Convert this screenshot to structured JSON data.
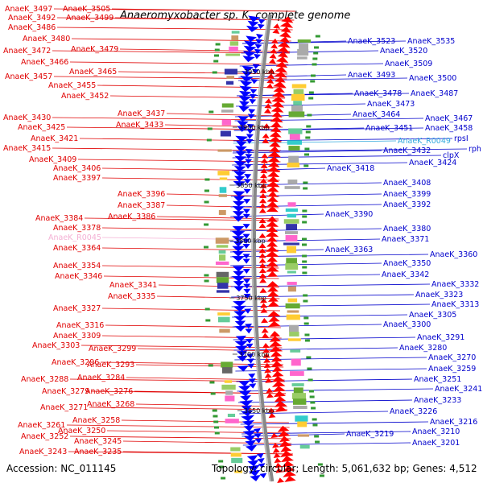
{
  "title": "Anaeromyxobacter sp. K, complete genome",
  "footer": {
    "accession": "Accession: NC_011145",
    "summary": "Topology: circular; Length: 5,061,632 bp; Genes: 4,512"
  },
  "colors": {
    "left_labels": "#e00000",
    "right_labels": "#0000cc",
    "rna_left": "#f4b0d4",
    "rna_right": "#33aadd",
    "forward_strand": "#ff0000",
    "reverse_strand": "#0000ff",
    "backbone": "#888888"
  },
  "scale_marks": [
    "3950 kbp",
    "3900 kbp",
    "3850 kbp",
    "3800 kbp",
    "3750 kbp",
    "3700 kbp",
    "3650 kbp"
  ],
  "left_labels": [
    "AnaeK_3497",
    "AnaeK_3505",
    "AnaeK_3492",
    "AnaeK_3499",
    "AnaeK_3486",
    "AnaeK_3480",
    "AnaeK_3472",
    "AnaeK_3479",
    "AnaeK_3466",
    "AnaeK_3465",
    "AnaeK_3457",
    "AnaeK_3455",
    "AnaeK_3452",
    "AnaeK_3437",
    "AnaeK_3430",
    "AnaeK_3433",
    "AnaeK_3425",
    "AnaeK_3421",
    "AnaeK_3415",
    "AnaeK_3409",
    "AnaeK_3406",
    "AnaeK_3397",
    "AnaeK_3396",
    "AnaeK_3387",
    "AnaeK_3384",
    "AnaeK_3386",
    "AnaeK_3378",
    "AnaeK_R0045",
    "AnaeK_3364",
    "AnaeK_3354",
    "AnaeK_3346",
    "AnaeK_3341",
    "AnaeK_3335",
    "AnaeK_3327",
    "AnaeK_3316",
    "AnaeK_3309",
    "AnaeK_3303",
    "AnaeK_3299",
    "AnaeK_3296",
    "AnaeK_3293",
    "AnaeK_3288",
    "AnaeK_3284",
    "AnaeK_3279",
    "AnaeK_3276",
    "AnaeK_3271",
    "AnaeK_3268",
    "AnaeK_3258",
    "AnaeK_3261",
    "AnaeK_3250",
    "AnaeK_3252",
    "AnaeK_3245",
    "AnaeK_3243",
    "AnaeK_3235"
  ],
  "right_labels": [
    "AnaeK_3523",
    "AnaeK_3535",
    "AnaeK_3520",
    "AnaeK_3509",
    "AnaeK_3493",
    "AnaeK_3500",
    "AnaeK_3478",
    "AnaeK_3487",
    "AnaeK_3473",
    "AnaeK_3464",
    "AnaeK_3467",
    "AnaeK_3451",
    "AnaeK_3458",
    "AnaeK_R0049",
    "rpsI",
    "AnaeK_3432",
    "rph",
    "clpX",
    "AnaeK_3424",
    "AnaeK_3418",
    "AnaeK_3408",
    "AnaeK_3399",
    "AnaeK_3392",
    "AnaeK_3390",
    "AnaeK_3380",
    "AnaeK_3371",
    "AnaeK_3363",
    "AnaeK_3360",
    "AnaeK_3350",
    "AnaeK_3342",
    "AnaeK_3332",
    "AnaeK_3323",
    "AnaeK_3313",
    "AnaeK_3305",
    "AnaeK_3300",
    "AnaeK_3291",
    "AnaeK_3280",
    "AnaeK_3270",
    "AnaeK_3259",
    "AnaeK_3251",
    "AnaeK_3241",
    "AnaeK_3233",
    "AnaeK_3226",
    "AnaeK_3216",
    "AnaeK_3219",
    "AnaeK_3210",
    "AnaeK_3201"
  ]
}
